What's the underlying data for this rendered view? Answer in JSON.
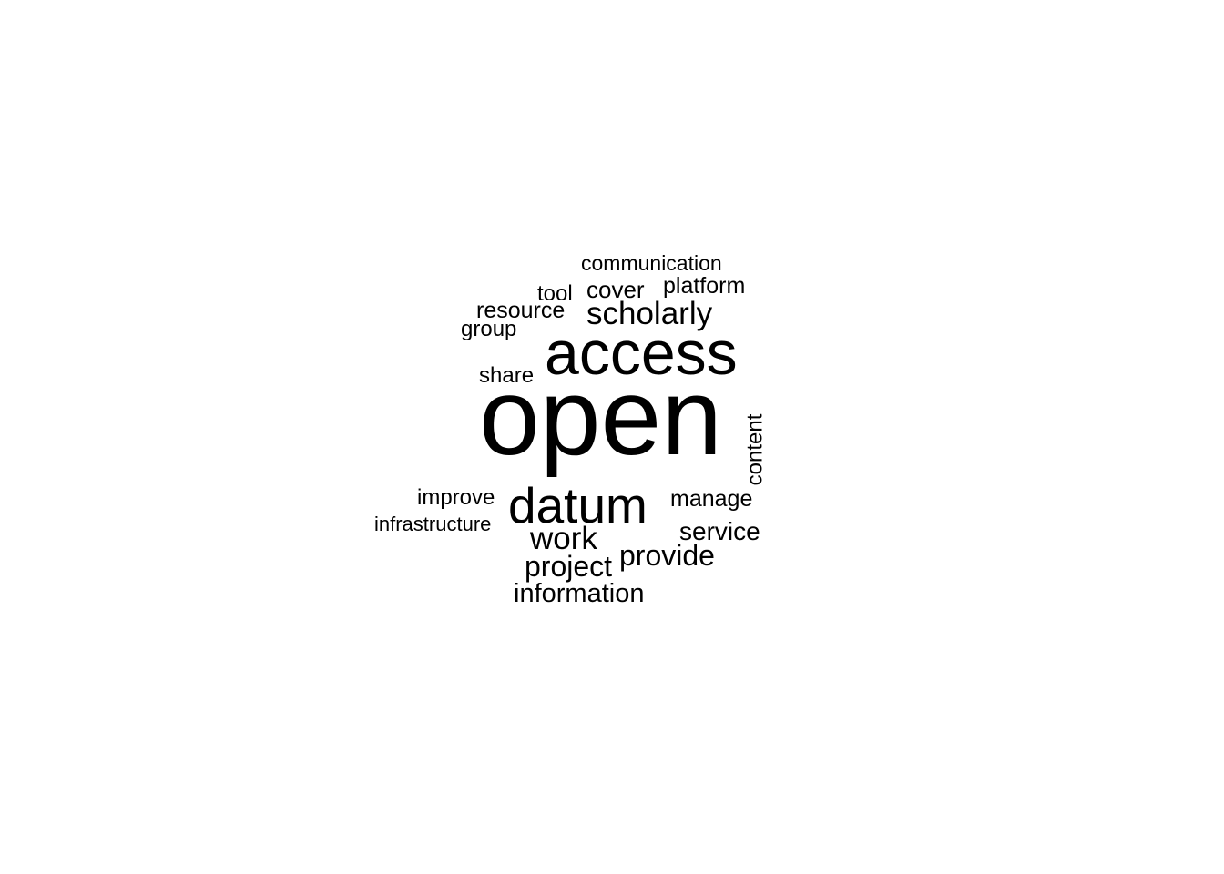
{
  "word_cloud": {
    "words": [
      {
        "text": "open",
        "weight": 120
      },
      {
        "text": "access",
        "weight": 68
      },
      {
        "text": "datum",
        "weight": 55
      },
      {
        "text": "scholarly",
        "weight": 35
      },
      {
        "text": "work",
        "weight": 35
      },
      {
        "text": "project",
        "weight": 32
      },
      {
        "text": "provide",
        "weight": 32
      },
      {
        "text": "information",
        "weight": 29
      },
      {
        "text": "service",
        "weight": 28
      },
      {
        "text": "cover",
        "weight": 26
      },
      {
        "text": "platform",
        "weight": 25
      },
      {
        "text": "resource",
        "weight": 25
      },
      {
        "text": "manage",
        "weight": 25
      },
      {
        "text": "tool",
        "weight": 24
      },
      {
        "text": "group",
        "weight": 24
      },
      {
        "text": "share",
        "weight": 24
      },
      {
        "text": "improve",
        "weight": 24
      },
      {
        "text": "content",
        "weight": 24
      },
      {
        "text": "communication",
        "weight": 23
      },
      {
        "text": "infrastructure",
        "weight": 22
      }
    ]
  }
}
